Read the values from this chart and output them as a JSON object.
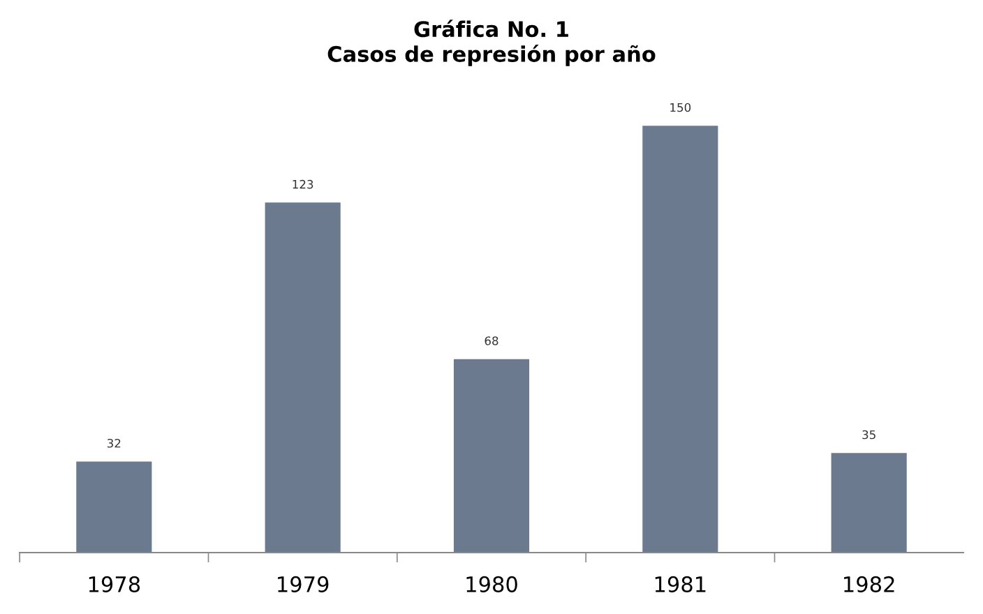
{
  "chart_data": {
    "type": "bar",
    "title": "Gráfica No. 1\nCasos de represión por año",
    "categories": [
      "1978",
      "1979",
      "1980",
      "1981",
      "1982"
    ],
    "values": [
      32,
      123,
      68,
      150,
      35
    ],
    "color": "#6b7a8f",
    "data_labels": true,
    "tick_labels": "x",
    "grid": false,
    "legend": false
  }
}
